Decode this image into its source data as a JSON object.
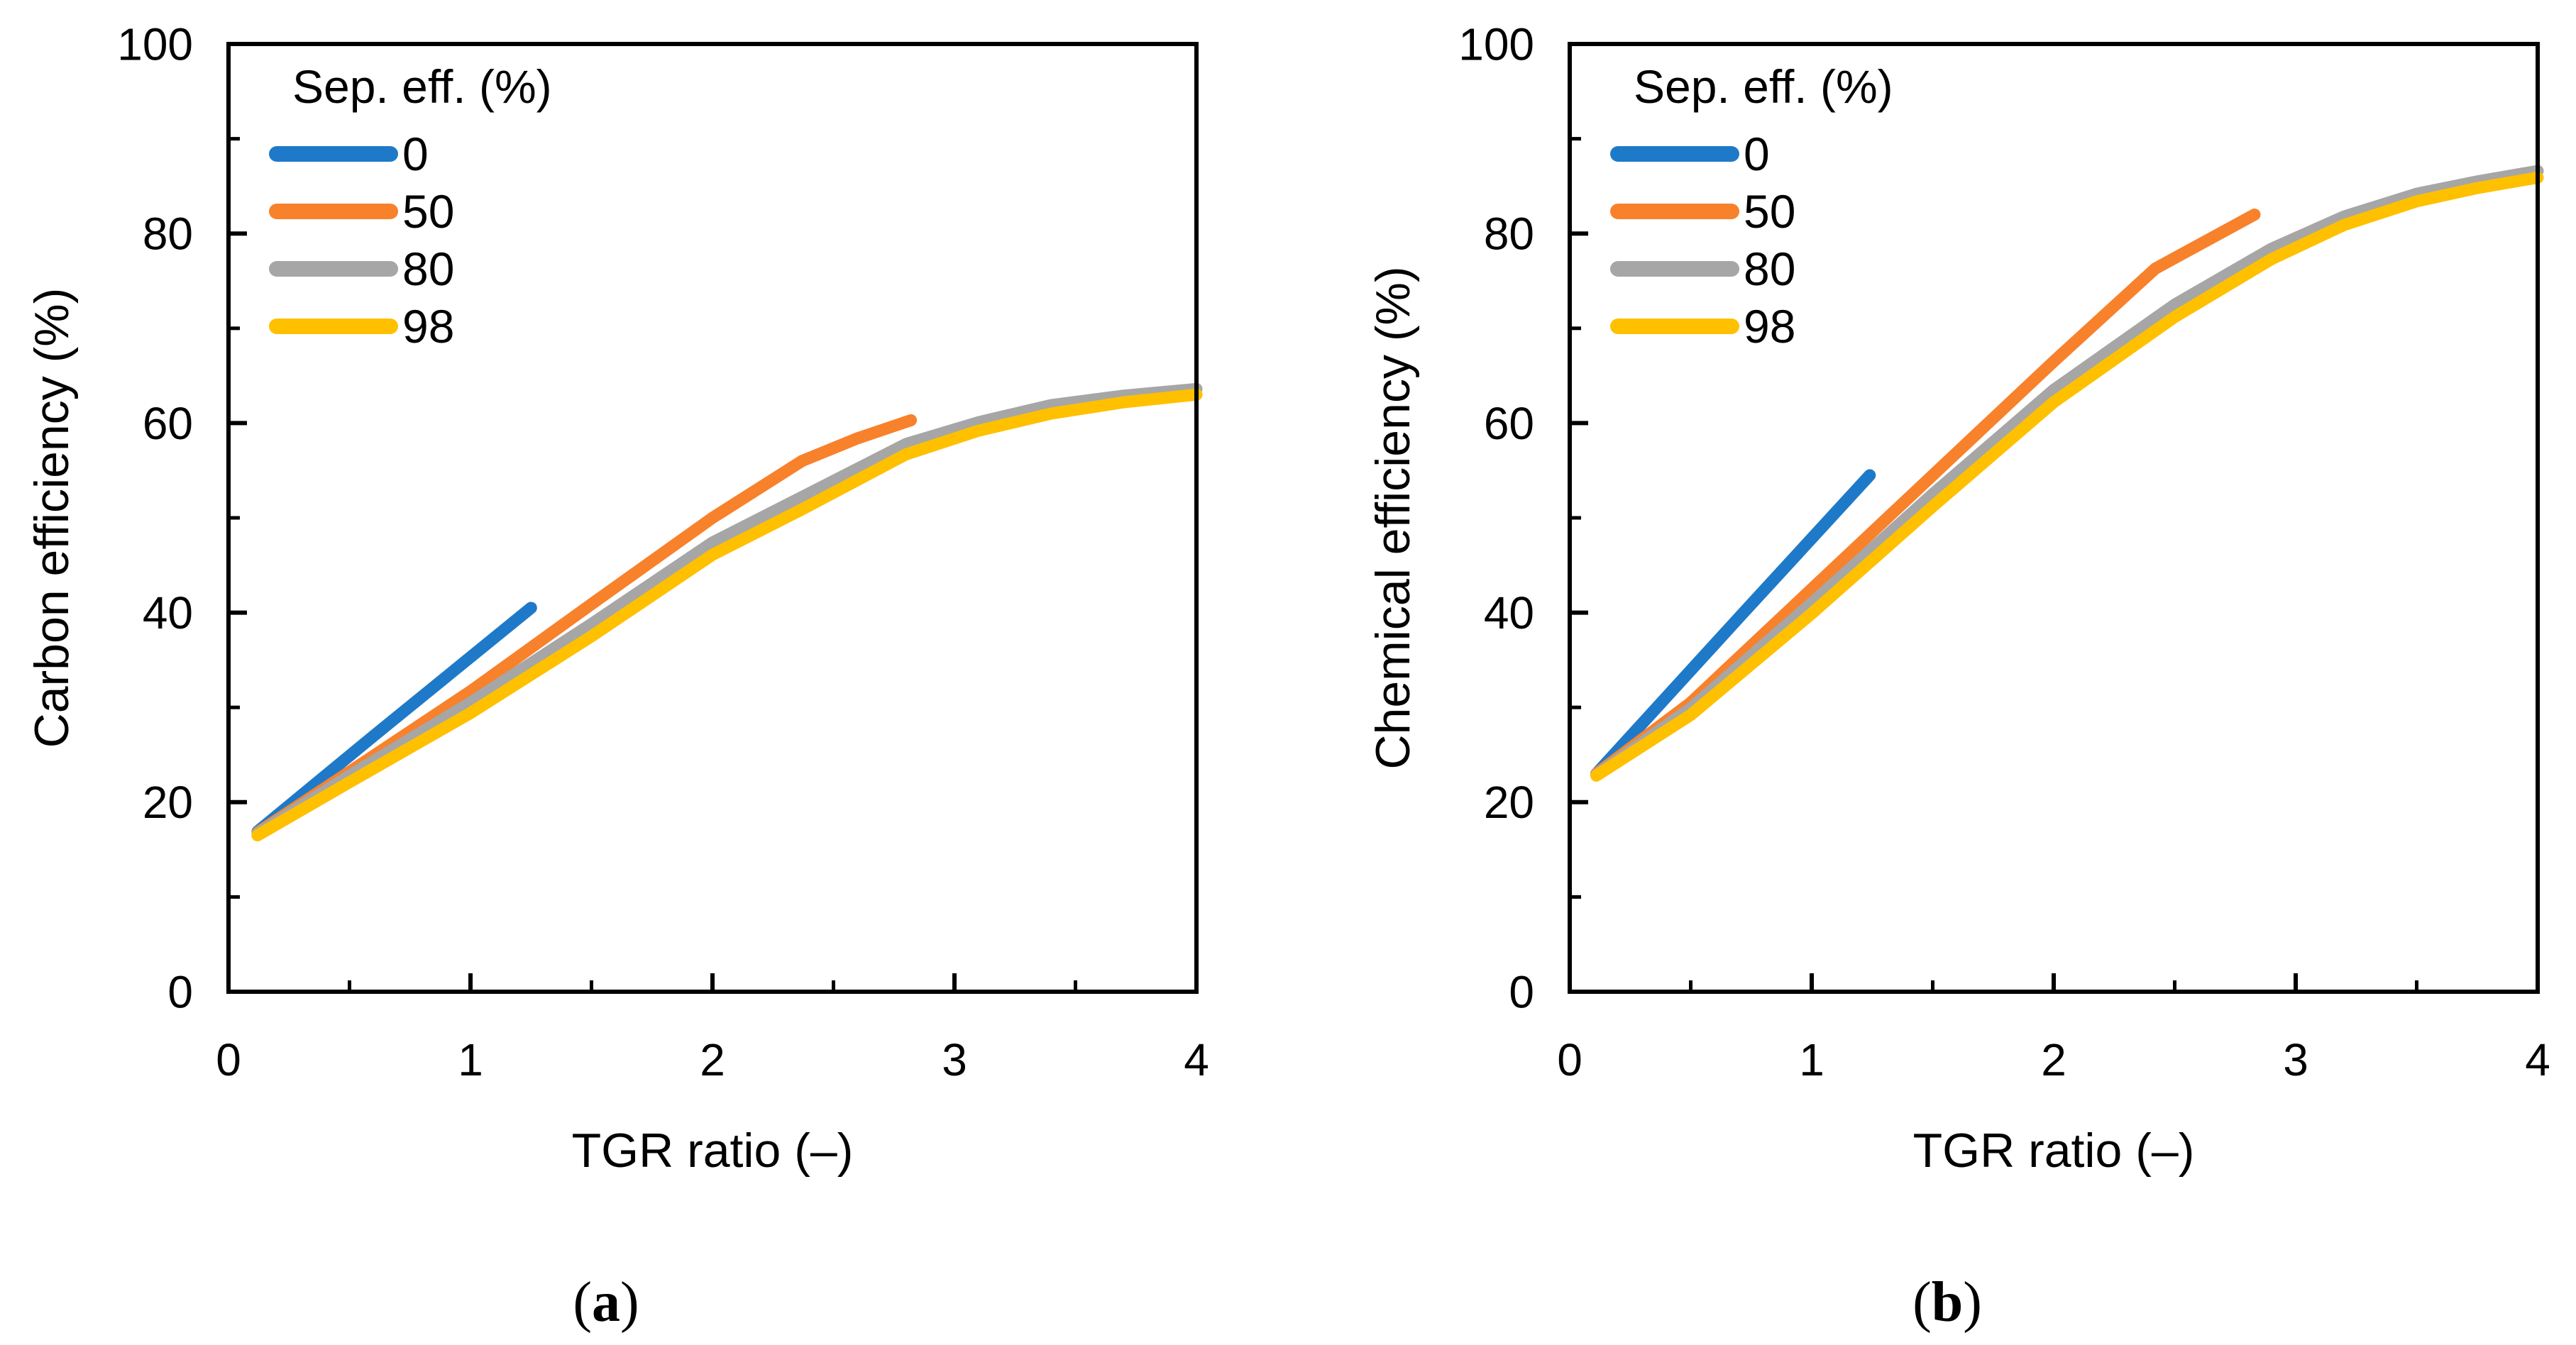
{
  "figure": {
    "background": "#ffffff",
    "axis_color": "#000000",
    "legend_colors": [
      "#1E7AC8",
      "#F8812B",
      "#A6A6A6",
      "#FFC000"
    ]
  },
  "chart_data": [
    {
      "type": "line",
      "panel": "a",
      "xlabel": "TGR ratio (–)",
      "ylabel": "Carbon efficiency (%)",
      "xlim": [
        0,
        4
      ],
      "ylim": [
        0,
        100
      ],
      "x_major_ticks": [
        0,
        1,
        2,
        3,
        4
      ],
      "x_minor_step": 0.5,
      "y_major_ticks": [
        0,
        20,
        40,
        60,
        80,
        100
      ],
      "y_minor_step": 10,
      "grid": false,
      "legend_title": "Sep. eff. (%)",
      "legend_position": "top-left",
      "caption_open": "(",
      "caption_letter": "a",
      "caption_close": ")",
      "series": [
        {
          "name": "0",
          "color": "#1E7AC8",
          "points": [
            [
              0.12,
              16.9
            ],
            [
              0.6,
              27.0
            ],
            [
              1.25,
              40.5
            ]
          ]
        },
        {
          "name": "50",
          "color": "#F8812B",
          "points": [
            [
              0.12,
              16.8
            ],
            [
              0.5,
              23.2
            ],
            [
              1.0,
              31.7
            ],
            [
              1.5,
              40.9
            ],
            [
              2.0,
              50.0
            ],
            [
              2.37,
              56.0
            ],
            [
              2.6,
              58.4
            ],
            [
              2.82,
              60.3
            ]
          ]
        },
        {
          "name": "80",
          "color": "#A6A6A6",
          "points": [
            [
              0.12,
              16.7
            ],
            [
              0.5,
              22.8
            ],
            [
              1.0,
              30.5
            ],
            [
              1.5,
              38.8
            ],
            [
              2.0,
              47.4
            ],
            [
              2.37,
              52.2
            ],
            [
              2.8,
              57.8
            ],
            [
              3.1,
              60.1
            ],
            [
              3.4,
              61.9
            ],
            [
              3.7,
              62.9
            ],
            [
              4.0,
              63.6
            ]
          ]
        },
        {
          "name": "98",
          "color": "#FFC000",
          "points": [
            [
              0.12,
              16.5
            ],
            [
              0.5,
              22.1
            ],
            [
              1.0,
              29.4
            ],
            [
              1.5,
              37.5
            ],
            [
              2.0,
              46.1
            ],
            [
              2.37,
              50.9
            ],
            [
              2.8,
              56.7
            ],
            [
              3.1,
              59.2
            ],
            [
              3.4,
              61.0
            ],
            [
              3.7,
              62.2
            ],
            [
              4.0,
              63.0
            ]
          ]
        }
      ]
    },
    {
      "type": "line",
      "panel": "b",
      "xlabel": "TGR ratio (–)",
      "ylabel": "Chemical efficiency (%)",
      "xlim": [
        0,
        4
      ],
      "ylim": [
        0,
        100
      ],
      "x_major_ticks": [
        0,
        1,
        2,
        3,
        4
      ],
      "x_minor_step": 0.5,
      "y_major_ticks": [
        0,
        20,
        40,
        60,
        80,
        100
      ],
      "y_minor_step": 10,
      "grid": false,
      "legend_title": "Sep. eff. (%)",
      "legend_position": "top-left",
      "caption_open": "(",
      "caption_letter": "b",
      "caption_close": ")",
      "series": [
        {
          "name": "0",
          "color": "#1E7AC8",
          "points": [
            [
              0.11,
              23.0
            ],
            [
              0.7,
              39.5
            ],
            [
              1.24,
              54.5
            ]
          ]
        },
        {
          "name": "50",
          "color": "#F8812B",
          "points": [
            [
              0.11,
              23.0
            ],
            [
              0.5,
              30.5
            ],
            [
              1.0,
              42.5
            ],
            [
              1.5,
              54.5
            ],
            [
              2.0,
              66.5
            ],
            [
              2.42,
              76.3
            ],
            [
              2.83,
              82.0
            ]
          ]
        },
        {
          "name": "80",
          "color": "#A6A6A6",
          "points": [
            [
              0.11,
              22.9
            ],
            [
              0.5,
              29.9
            ],
            [
              1.0,
              41.0
            ],
            [
              1.5,
              52.5
            ],
            [
              2.0,
              63.5
            ],
            [
              2.5,
              72.5
            ],
            [
              2.9,
              78.4
            ],
            [
              3.2,
              81.8
            ],
            [
              3.5,
              84.2
            ],
            [
              3.75,
              85.5
            ],
            [
              4.0,
              86.6
            ]
          ]
        },
        {
          "name": "98",
          "color": "#FFC000",
          "points": [
            [
              0.11,
              22.8
            ],
            [
              0.5,
              29.2
            ],
            [
              1.0,
              39.9
            ],
            [
              1.5,
              51.2
            ],
            [
              2.0,
              62.2
            ],
            [
              2.5,
              71.2
            ],
            [
              2.9,
              77.3
            ],
            [
              3.2,
              80.9
            ],
            [
              3.5,
              83.4
            ],
            [
              3.75,
              84.8
            ],
            [
              4.0,
              85.9
            ]
          ]
        }
      ]
    }
  ]
}
